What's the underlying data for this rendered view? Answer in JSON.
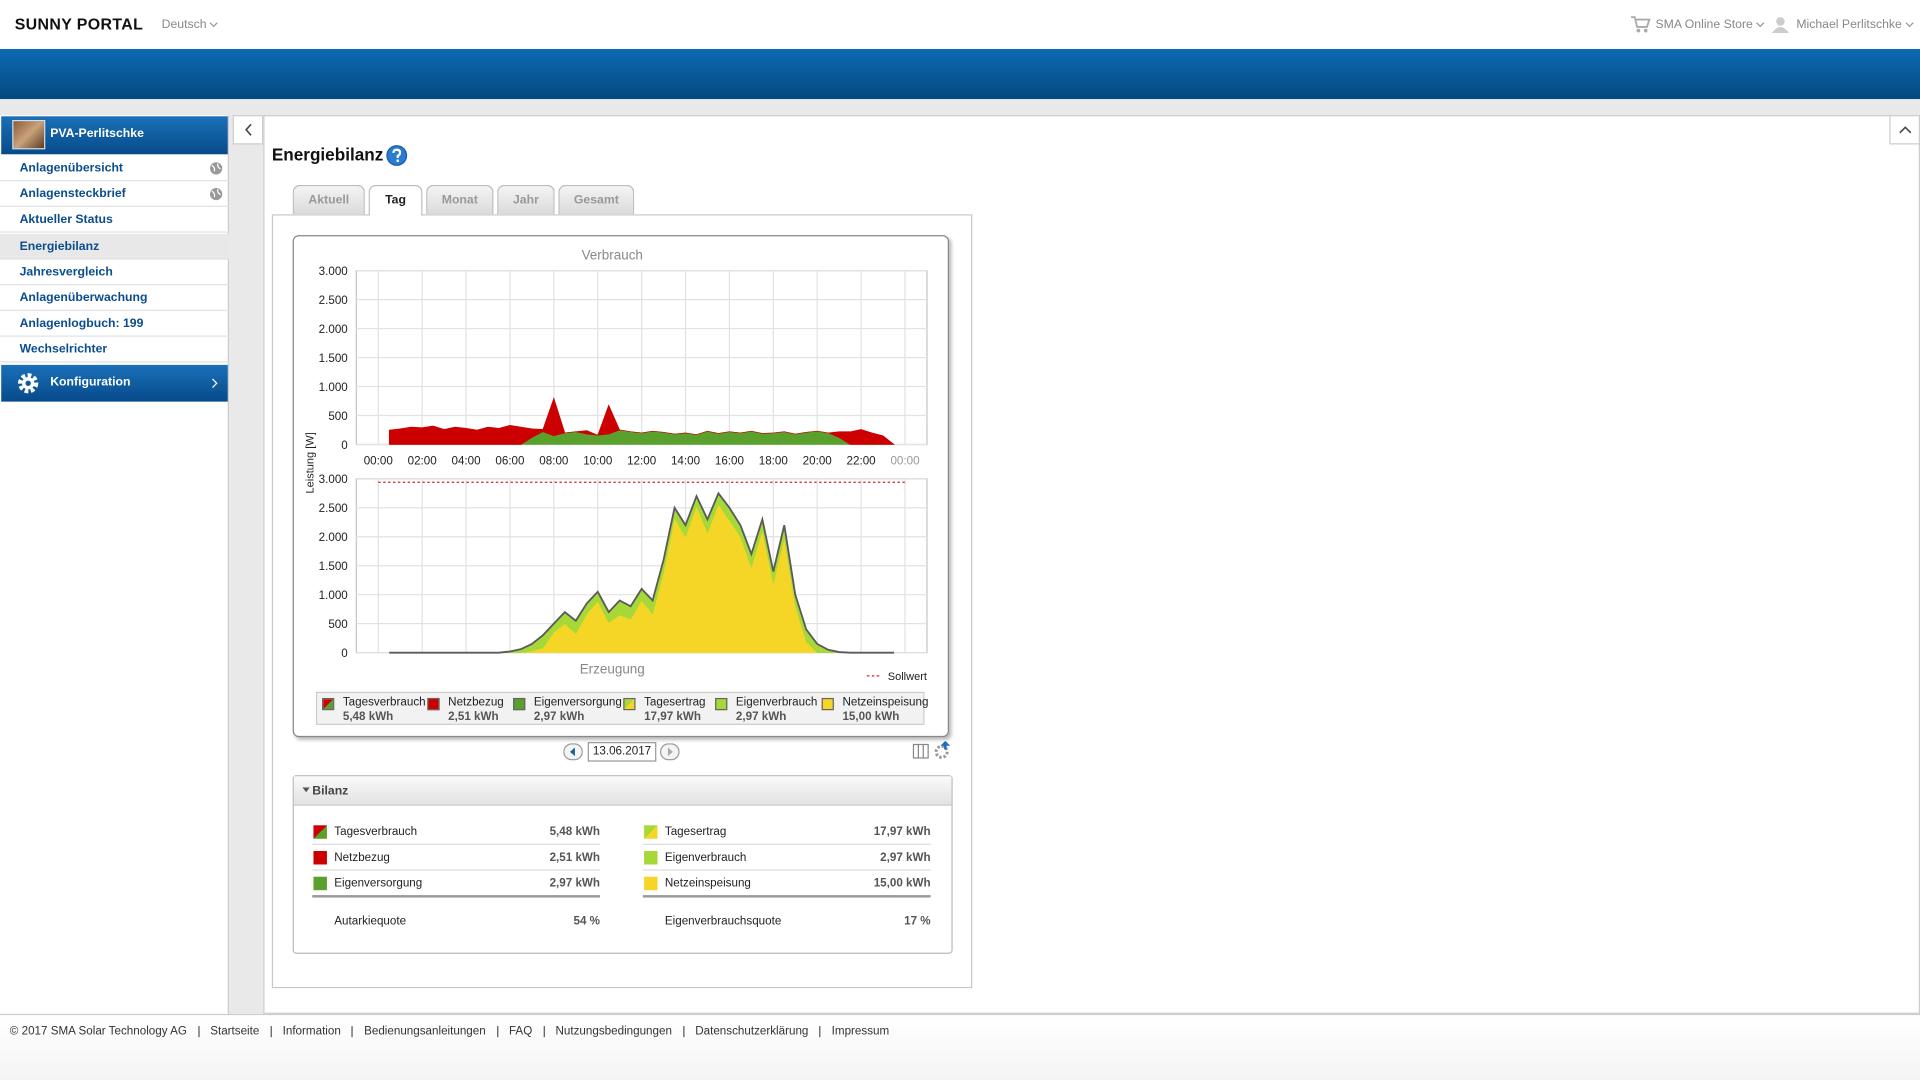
{
  "header": {
    "logo": "SUNNY PORTAL",
    "language": "Deutsch",
    "store": "SMA Online Store",
    "user": "Michael Perlitschke"
  },
  "sidebar": {
    "plant": "PVA-Perlitschke",
    "menu": [
      "Anlagenübersicht",
      "Anlagensteckbrief",
      "Aktueller Status",
      "Energiebilanz",
      "Jahresvergleich",
      "Anlagenüberwachung",
      "Anlagenlogbuch: 199",
      "Wechselrichter"
    ],
    "active_menu": 3,
    "config": "Konfiguration"
  },
  "page": {
    "title": "Energiebilanz",
    "tabs": [
      "Aktuell",
      "Tag",
      "Monat",
      "Jahr",
      "Gesamt"
    ],
    "active_tab": 1,
    "date": "13.06.2017",
    "bilanz_title": "Bilanz"
  },
  "chart_data": [
    {
      "type": "area",
      "stacked": true,
      "title": "Verbrauch",
      "ylabel": "Leistung [W]",
      "grid": true,
      "xlim": [
        -1,
        25
      ],
      "ylim": [
        0,
        3000
      ],
      "xticks": [
        {
          "value": 0,
          "label": "00:00"
        },
        {
          "value": 2,
          "label": "02:00"
        },
        {
          "value": 4,
          "label": "04:00"
        },
        {
          "value": 6,
          "label": "06:00"
        },
        {
          "value": 8,
          "label": "08:00"
        },
        {
          "value": 10,
          "label": "10:00"
        },
        {
          "value": 12,
          "label": "12:00"
        },
        {
          "value": 14,
          "label": "14:00"
        },
        {
          "value": 16,
          "label": "16:00"
        },
        {
          "value": 18,
          "label": "18:00"
        },
        {
          "value": 20,
          "label": "20:00"
        },
        {
          "value": 22,
          "label": "22:00"
        },
        {
          "value": 24,
          "label": "00:00"
        }
      ],
      "yticks": [
        {
          "value": 3000,
          "label": "3.000"
        },
        {
          "value": 2500,
          "label": "2.500"
        },
        {
          "value": 2000,
          "label": "2.000"
        },
        {
          "value": 1500,
          "label": "1.500"
        },
        {
          "value": 1000,
          "label": "1.000"
        },
        500,
        0
      ],
      "x": [
        0.5,
        1,
        1.5,
        2,
        2.5,
        3,
        3.5,
        4,
        4.5,
        5,
        5.5,
        6,
        6.5,
        7,
        7.5,
        8,
        8.5,
        9,
        9.5,
        10,
        10.5,
        11,
        11.5,
        12,
        12.5,
        13,
        13.5,
        14,
        14.5,
        15,
        15.5,
        16,
        16.5,
        17,
        17.5,
        18,
        18.5,
        19,
        19.5,
        20,
        20.5,
        21,
        21.5,
        22,
        22.5,
        23,
        23.5
      ],
      "total": {
        "name": "Tagesverbrauch",
        "value": "5,48 kWh"
      },
      "ratio": {
        "name": "Autarkiequote",
        "value": "54 %"
      },
      "series": [
        {
          "name": "Netzbezug",
          "color": "#cc0000",
          "total": "2,51 kWh",
          "values": [
            250,
            270,
            300,
            290,
            320,
            260,
            300,
            280,
            250,
            300,
            280,
            330,
            300,
            150,
            40,
            650,
            0,
            0,
            60,
            0,
            500,
            0,
            0,
            0,
            0,
            0,
            0,
            0,
            0,
            0,
            0,
            0,
            0,
            0,
            0,
            0,
            0,
            0,
            0,
            0,
            0,
            100,
            220,
            260,
            200,
            150,
            0
          ]
        },
        {
          "name": "Eigenversorgung",
          "color": "#5aa02c",
          "total": "2,97 kWh",
          "values": [
            0,
            0,
            0,
            0,
            0,
            0,
            0,
            0,
            0,
            0,
            0,
            0,
            0,
            120,
            220,
            150,
            200,
            220,
            180,
            160,
            180,
            250,
            220,
            200,
            230,
            210,
            180,
            200,
            170,
            230,
            190,
            220,
            200,
            230,
            190,
            200,
            220,
            180,
            210,
            230,
            200,
            120,
            0,
            0,
            0,
            0,
            0
          ]
        }
      ]
    },
    {
      "type": "area",
      "stacked": true,
      "title": "Erzeugung",
      "grid": true,
      "outline": "#5a5a5a",
      "xlim": [
        -1,
        25
      ],
      "ylim": [
        0,
        3000
      ],
      "yticks": [
        {
          "value": 3000,
          "label": "3.000"
        },
        {
          "value": 2500,
          "label": "2.500"
        },
        {
          "value": 2000,
          "label": "2.000"
        },
        {
          "value": 1500,
          "label": "1.500"
        },
        {
          "value": 1000,
          "label": "1.000"
        },
        500,
        0
      ],
      "x": [
        0.5,
        1,
        1.5,
        2,
        2.5,
        3,
        3.5,
        4,
        4.5,
        5,
        5.5,
        6,
        6.5,
        7,
        7.5,
        8,
        8.5,
        9,
        9.5,
        10,
        10.5,
        11,
        11.5,
        12,
        12.5,
        13,
        13.5,
        14,
        14.5,
        15,
        15.5,
        16,
        16.5,
        17,
        17.5,
        18,
        18.5,
        19,
        19.5,
        20,
        20.5,
        21,
        21.5,
        22,
        22.5,
        23,
        23.5
      ],
      "reference": {
        "name": "Sollwert",
        "value": 2940,
        "color": "#dd2222"
      },
      "total": {
        "name": "Tagesertrag",
        "value": "17,97 kWh"
      },
      "ratio": {
        "name": "Eigenverbrauchsquote",
        "value": "17 %"
      },
      "series": [
        {
          "name": "Eigenverbrauch",
          "color": "#a6d83a",
          "total": "2,97 kWh",
          "values": [
            0,
            0,
            0,
            0,
            0,
            0,
            0,
            0,
            0,
            0,
            0,
            20,
            60,
            120,
            220,
            150,
            200,
            220,
            180,
            160,
            180,
            250,
            220,
            200,
            230,
            210,
            180,
            200,
            170,
            230,
            190,
            220,
            200,
            230,
            190,
            200,
            220,
            180,
            210,
            150,
            50,
            10,
            0,
            0,
            0,
            0,
            0
          ]
        },
        {
          "name": "Netzeinspeisung",
          "color": "#f5d626",
          "total": "15,00 kWh",
          "values": [
            0,
            0,
            0,
            0,
            0,
            0,
            0,
            0,
            0,
            0,
            0,
            0,
            0,
            30,
            80,
            350,
            500,
            330,
            670,
            890,
            520,
            650,
            580,
            900,
            670,
            1390,
            2320,
            2000,
            2530,
            2070,
            2560,
            2280,
            2000,
            1470,
            2110,
            1200,
            1980,
            820,
            190,
            0,
            0,
            0,
            0,
            0,
            0,
            0,
            0
          ]
        }
      ]
    }
  ],
  "footer": [
    "© 2017 SMA Solar Technology AG",
    "Startseite",
    "Information",
    "Bedienungsanleitungen",
    "FAQ",
    "Nutzungsbedingungen",
    "Datenschutzerklärung",
    "Impressum"
  ]
}
